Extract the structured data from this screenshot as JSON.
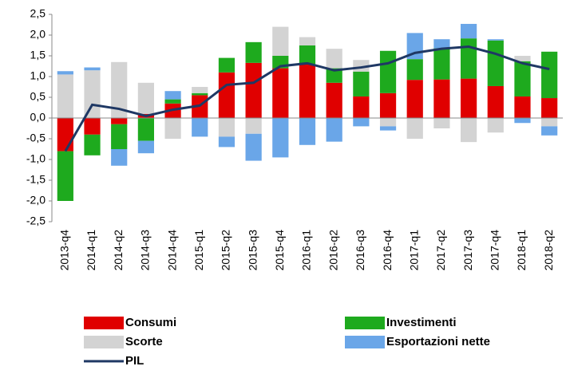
{
  "chart_data": {
    "type": "bar",
    "categories": [
      "2013-q4",
      "2014-q1",
      "2014-q2",
      "2014-q3",
      "2014-q4",
      "2015-q1",
      "2015-q2",
      "2015-q3",
      "2015-q4",
      "2016-q1",
      "2016-q2",
      "2016-q3",
      "2016-q4",
      "2017-q1",
      "2017-q2",
      "2017-q3",
      "2017-q4",
      "2018-q1",
      "2018-q2"
    ],
    "series": [
      {
        "name": "Consumi",
        "color": "#e00000",
        "values": [
          -0.8,
          -0.4,
          -0.15,
          0.1,
          0.35,
          0.55,
          1.1,
          1.33,
          1.2,
          1.3,
          0.85,
          0.52,
          0.6,
          0.92,
          0.93,
          0.95,
          0.77,
          0.52,
          0.48
        ]
      },
      {
        "name": "Investimenti",
        "color": "#1eaa1e",
        "values": [
          -1.2,
          -0.5,
          -0.6,
          -0.55,
          0.1,
          0.05,
          0.35,
          0.5,
          0.3,
          0.45,
          0.35,
          0.6,
          1.02,
          0.5,
          0.75,
          0.97,
          1.1,
          0.85,
          1.12
        ]
      },
      {
        "name": "Scorte",
        "color": "#d3d3d3",
        "values": [
          1.05,
          1.15,
          1.35,
          0.75,
          -0.5,
          0.15,
          -0.45,
          -0.38,
          0.7,
          0.2,
          0.47,
          0.28,
          -0.2,
          -0.5,
          -0.25,
          -0.58,
          -0.35,
          0.13,
          -0.2
        ]
      },
      {
        "name": "Esportazioni nette",
        "color": "#6aa6e8",
        "values": [
          0.08,
          0.07,
          -0.4,
          -0.3,
          0.2,
          -0.45,
          -0.25,
          -0.65,
          -0.95,
          -0.65,
          -0.57,
          -0.2,
          -0.1,
          0.63,
          0.22,
          0.35,
          0.03,
          -0.12,
          -0.22
        ]
      },
      {
        "name": "PIL",
        "type": "line",
        "color": "#1f3864",
        "values": [
          -0.8,
          0.32,
          0.22,
          0.05,
          0.2,
          0.3,
          0.8,
          0.85,
          1.25,
          1.32,
          1.15,
          1.22,
          1.32,
          1.57,
          1.67,
          1.72,
          1.55,
          1.32,
          1.18
        ]
      }
    ],
    "ylim": [
      -2.5,
      2.5
    ],
    "yticks": [
      {
        "value": 2.5,
        "label": "2,5"
      },
      {
        "value": 2,
        "label": "2,0"
      },
      {
        "value": 1.5,
        "label": "1,5"
      },
      {
        "value": 1,
        "label": "1,0"
      },
      {
        "value": 0.5,
        "label": "0,5"
      },
      {
        "value": 0,
        "label": "0,0"
      },
      {
        "value": -0.5,
        "label": "-0,5"
      },
      {
        "value": -1,
        "label": "-1,0"
      },
      {
        "value": -1.5,
        "label": "-1,5"
      },
      {
        "value": -2,
        "label": "-2,0"
      },
      {
        "value": -2.5,
        "label": "-2,5"
      }
    ],
    "stacked": true
  }
}
